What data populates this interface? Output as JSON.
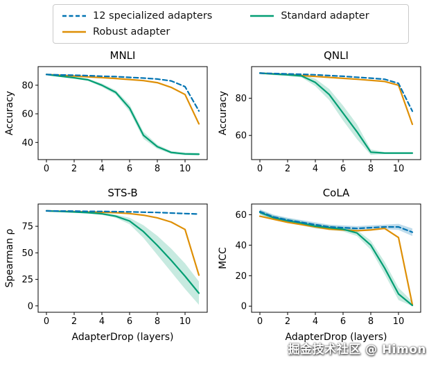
{
  "colors": {
    "specialized": "#0173B2",
    "robust": "#DE8F05",
    "standard": "#029E73",
    "standard_band": "rgba(2,158,115,0.22)",
    "specialized_band": "rgba(1,115,178,0.25)",
    "axis": "#000000"
  },
  "legend": {
    "items": [
      {
        "label": "12 specialized adapters",
        "style": "dashed",
        "color_key": "specialized"
      },
      {
        "label": "Robust adapter",
        "style": "solid",
        "color_key": "robust"
      },
      {
        "label": "Standard adapter",
        "style": "solid",
        "color_key": "standard"
      }
    ]
  },
  "watermark": "掘金技术社区 @ Himon",
  "chart_data": [
    {
      "type": "line",
      "title": "MNLI",
      "ylabel": "Accuracy",
      "xlabel": "",
      "x": [
        0,
        1,
        2,
        3,
        4,
        5,
        6,
        7,
        8,
        9,
        10,
        11
      ],
      "xticks": [
        0,
        2,
        4,
        6,
        8,
        10
      ],
      "yticks": [
        40,
        60,
        80
      ],
      "xlim": [
        -0.6,
        11.6
      ],
      "ylim": [
        28,
        93
      ],
      "series": [
        {
          "name": "12 specialized adapters",
          "color": "specialized",
          "dash": true,
          "values": [
            87.5,
            87.2,
            87.0,
            86.7,
            86.3,
            86.0,
            85.5,
            85.0,
            84.3,
            83.0,
            79.0,
            62.0
          ]
        },
        {
          "name": "Robust adapter",
          "color": "robust",
          "dash": false,
          "values": [
            87.5,
            87.0,
            86.4,
            85.8,
            85.3,
            84.7,
            84.0,
            83.2,
            81.8,
            78.5,
            73.5,
            53.0
          ]
        },
        {
          "name": "Standard adapter",
          "color": "standard",
          "dash": false,
          "values": [
            87.5,
            86.3,
            85.2,
            83.8,
            80.0,
            75.0,
            64.0,
            45.0,
            37.0,
            33.0,
            32.0,
            31.8
          ],
          "band": {
            "color": "standard_band",
            "upper": [
              88.0,
              86.9,
              85.8,
              84.6,
              81.2,
              76.5,
              66.5,
              47.5,
              38.5,
              34.0,
              33.0,
              32.8
            ],
            "lower": [
              87.0,
              85.7,
              84.6,
              83.0,
              78.8,
              73.5,
              61.5,
              42.5,
              35.5,
              32.0,
              31.0,
              30.8
            ]
          }
        }
      ]
    },
    {
      "type": "line",
      "title": "QNLI",
      "ylabel": "Accuracy",
      "xlabel": "",
      "x": [
        0,
        1,
        2,
        3,
        4,
        5,
        6,
        7,
        8,
        9,
        10,
        11
      ],
      "xticks": [
        0,
        2,
        4,
        6,
        8,
        10
      ],
      "yticks": [
        60,
        80
      ],
      "xlim": [
        -0.6,
        11.6
      ],
      "ylim": [
        47,
        97
      ],
      "series": [
        {
          "name": "12 specialized adapters",
          "color": "specialized",
          "dash": true,
          "values": [
            93.5,
            93.3,
            93.1,
            92.9,
            92.6,
            92.2,
            91.8,
            91.3,
            90.8,
            90.2,
            88.0,
            73.0
          ]
        },
        {
          "name": "Robust adapter",
          "color": "robust",
          "dash": false,
          "values": [
            93.5,
            93.1,
            92.7,
            92.2,
            91.7,
            91.2,
            90.7,
            90.2,
            89.6,
            89.0,
            87.0,
            66.0
          ]
        },
        {
          "name": "Standard adapter",
          "color": "standard",
          "dash": false,
          "values": [
            93.5,
            93.0,
            92.6,
            92.0,
            88.5,
            82.0,
            72.0,
            62.0,
            51.0,
            50.5,
            50.5,
            50.5
          ],
          "band": {
            "color": "standard_band",
            "upper": [
              94.0,
              93.6,
              93.3,
              92.8,
              90.5,
              85.0,
              76.0,
              66.0,
              52.5,
              51.0,
              51.0,
              51.0
            ],
            "lower": [
              93.0,
              92.4,
              91.9,
              91.2,
              86.5,
              79.0,
              68.0,
              58.0,
              49.5,
              50.0,
              50.0,
              50.0
            ]
          }
        }
      ]
    },
    {
      "type": "line",
      "title": "STS-B",
      "ylabel": "Spearman ρ",
      "xlabel": "AdapterDrop (layers)",
      "x": [
        0,
        1,
        2,
        3,
        4,
        5,
        6,
        7,
        8,
        9,
        10,
        11
      ],
      "xticks": [
        0,
        2,
        4,
        6,
        8,
        10
      ],
      "yticks": [
        0,
        25,
        50,
        75
      ],
      "xlim": [
        -0.6,
        11.6
      ],
      "ylim": [
        -6,
        96
      ],
      "series": [
        {
          "name": "12 specialized adapters",
          "color": "specialized",
          "dash": true,
          "values": [
            89.5,
            89.4,
            89.3,
            89.1,
            89.0,
            88.8,
            88.6,
            88.3,
            88.0,
            87.5,
            87.0,
            86.5
          ]
        },
        {
          "name": "Robust adapter",
          "color": "robust",
          "dash": false,
          "values": [
            89.5,
            89.2,
            88.9,
            88.5,
            88.2,
            87.8,
            87.0,
            85.5,
            83.0,
            79.0,
            72.0,
            29.0
          ]
        },
        {
          "name": "Standard adapter",
          "color": "standard",
          "dash": false,
          "values": [
            89.5,
            89.0,
            88.5,
            87.8,
            86.8,
            84.5,
            80.0,
            70.0,
            57.0,
            43.0,
            28.0,
            12.0
          ],
          "band": {
            "color": "standard_band",
            "upper": [
              90.0,
              89.5,
              89.1,
              88.5,
              87.8,
              86.0,
              83.0,
              76.0,
              66.0,
              54.0,
              40.0,
              23.0
            ],
            "lower": [
              89.0,
              88.5,
              87.9,
              87.1,
              85.8,
              83.0,
              77.0,
              64.0,
              48.0,
              32.0,
              16.0,
              1.0
            ]
          }
        }
      ]
    },
    {
      "type": "line",
      "title": "CoLA",
      "ylabel": "MCC",
      "xlabel": "AdapterDrop (layers)",
      "x": [
        0,
        1,
        2,
        3,
        4,
        5,
        6,
        7,
        8,
        9,
        10,
        11
      ],
      "xticks": [
        0,
        2,
        4,
        6,
        8,
        10
      ],
      "yticks": [
        0,
        20,
        40,
        60
      ],
      "xlim": [
        -0.6,
        11.6
      ],
      "ylim": [
        -4,
        67
      ],
      "series": [
        {
          "name": "12 specialized adapters",
          "color": "specialized",
          "dash": true,
          "values": [
            62.0,
            58.5,
            56.5,
            55.0,
            53.5,
            52.0,
            51.5,
            51.0,
            51.5,
            52.0,
            52.0,
            48.5
          ],
          "band": {
            "color": "specialized_band",
            "upper": [
              63.5,
              60.0,
              58.0,
              56.5,
              55.0,
              53.5,
              53.0,
              52.5,
              53.0,
              53.5,
              54.0,
              51.0
            ],
            "lower": [
              60.5,
              57.0,
              55.0,
              53.5,
              52.0,
              50.5,
              50.0,
              49.5,
              50.0,
              50.5,
              50.0,
              46.0
            ]
          }
        },
        {
          "name": "Robust adapter",
          "color": "robust",
          "dash": false,
          "values": [
            59.0,
            57.0,
            55.0,
            53.5,
            52.0,
            50.5,
            50.0,
            49.5,
            50.0,
            51.0,
            45.0,
            1.0
          ]
        },
        {
          "name": "Standard adapter",
          "color": "standard",
          "dash": false,
          "values": [
            61.5,
            58.0,
            56.0,
            54.5,
            52.5,
            51.5,
            50.5,
            48.0,
            40.0,
            25.0,
            8.0,
            0.5
          ],
          "band": {
            "color": "standard_band",
            "upper": [
              63.0,
              59.5,
              57.5,
              56.0,
              54.0,
              53.0,
              52.0,
              50.0,
              43.0,
              29.0,
              12.0,
              3.0
            ],
            "lower": [
              60.0,
              56.5,
              54.5,
              53.0,
              51.0,
              50.0,
              49.0,
              46.0,
              37.0,
              21.0,
              4.0,
              0.0
            ]
          }
        }
      ]
    }
  ]
}
